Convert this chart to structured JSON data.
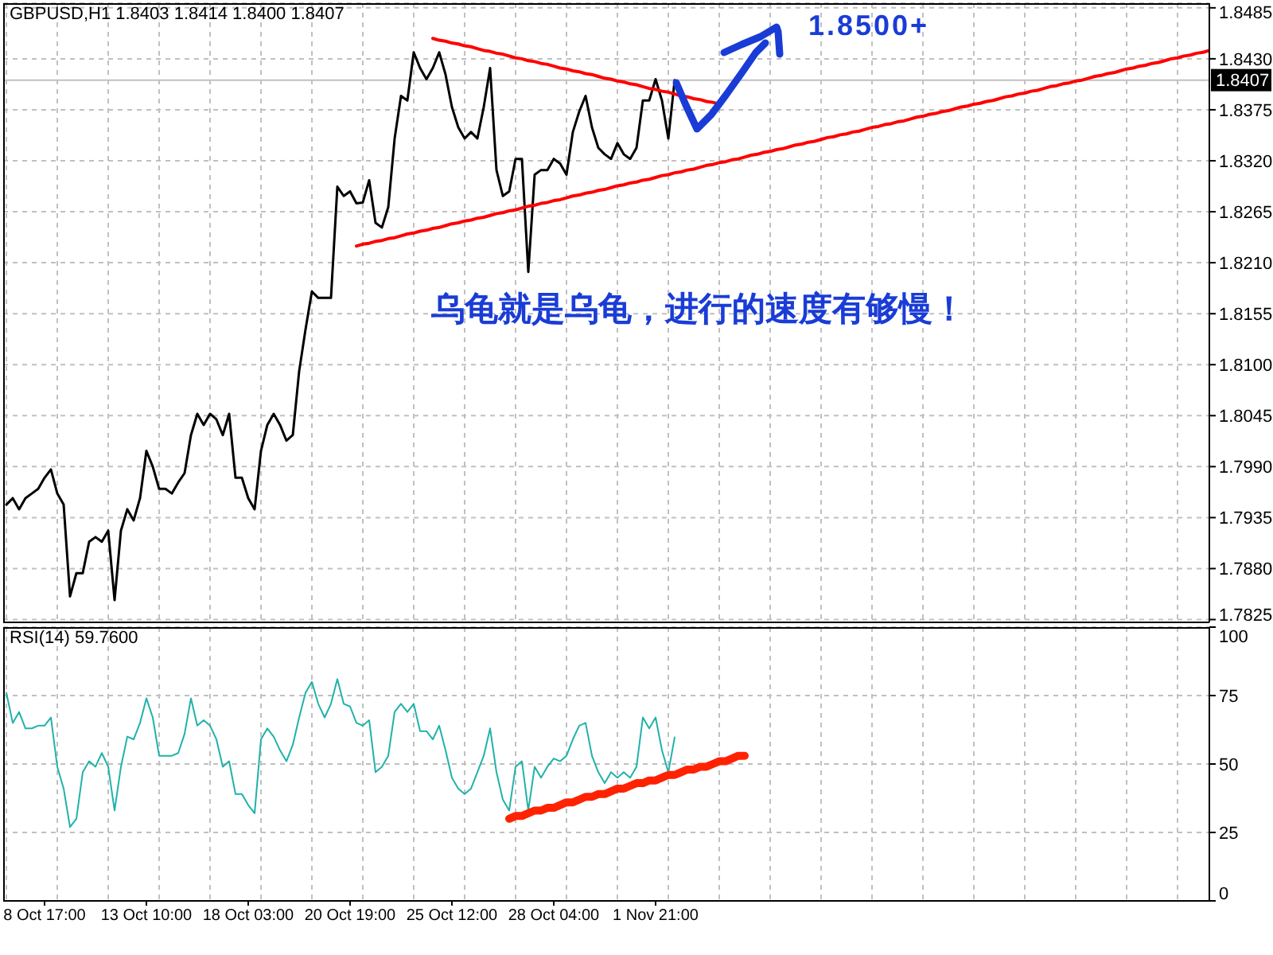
{
  "chart_data": [
    {
      "type": "line",
      "title": "GBPUSD,H1 1.8403 1.8414 1.8400 1.8407",
      "categories": [
        null,
        null,
        null,
        null,
        null,
        null,
        null,
        null,
        null,
        null,
        null,
        null,
        null,
        null,
        null,
        null,
        null,
        null,
        null,
        null,
        null,
        null,
        null,
        null,
        null,
        null,
        null,
        null,
        null,
        null,
        null,
        null,
        null,
        null,
        null,
        null,
        null,
        null,
        null,
        null,
        null,
        null,
        null,
        null,
        null,
        null,
        null,
        null,
        null,
        null,
        null,
        null,
        null,
        null,
        null,
        null,
        null,
        null,
        null,
        null,
        null,
        null,
        null,
        null,
        null,
        null,
        null,
        null,
        null,
        null,
        null,
        null,
        null,
        null,
        null,
        null,
        null,
        null,
        null,
        null,
        null,
        null,
        null,
        null,
        null,
        null,
        null,
        null,
        null,
        null,
        null,
        null,
        null,
        null,
        null,
        null,
        null,
        null,
        null,
        null,
        null,
        null,
        null,
        null,
        null,
        null,
        null,
        null,
        null,
        null,
        null,
        null,
        null,
        null,
        null,
        null,
        null,
        null,
        null,
        null,
        null,
        null,
        null,
        null,
        null,
        null,
        null,
        null,
        null,
        null,
        null,
        null,
        null,
        null,
        null,
        null,
        null,
        null,
        null,
        null,
        null,
        null,
        null,
        null,
        null,
        null,
        null,
        null,
        null,
        null,
        null,
        null,
        null,
        null,
        null,
        null,
        null,
        null,
        null,
        null,
        null,
        null,
        null,
        null,
        null,
        null,
        null,
        null,
        null,
        null,
        null,
        null,
        null,
        null,
        null,
        null,
        null,
        null,
        null,
        null,
        null,
        null,
        null,
        null,
        null,
        null,
        null,
        null,
        null,
        null
      ],
      "series": [
        {
          "color": "#000000",
          "values": [
            1.7949,
            1.7956,
            1.7944,
            1.7956,
            1.7961,
            1.7966,
            1.7978,
            1.7987,
            1.7961,
            1.7949,
            1.785,
            1.7875,
            1.7875,
            1.7909,
            1.7914,
            1.7909,
            1.7921,
            1.7846,
            1.7921,
            1.7944,
            1.7932,
            1.7956,
            1.8007,
            1.799,
            1.7966,
            1.7966,
            1.7961,
            1.7973,
            1.7983,
            1.8024,
            1.8047,
            1.8035,
            1.8047,
            1.8041,
            1.8024,
            1.8047,
            1.7978,
            1.7978,
            1.7956,
            1.7944,
            1.8007,
            1.8035,
            1.8047,
            1.8035,
            1.8018,
            1.8024,
            1.8093,
            1.8138,
            1.8179,
            1.8172,
            1.8172,
            1.8172,
            1.8292,
            1.8282,
            1.8287,
            1.8274,
            1.8275,
            1.8299,
            1.8253,
            1.8248,
            1.827,
            1.8344,
            1.839,
            1.8385,
            1.8437,
            1.842,
            1.8408,
            1.842,
            1.8437,
            1.8413,
            1.8378,
            1.8356,
            1.8344,
            1.8351,
            1.8344,
            1.8378,
            1.842,
            1.831,
            1.8282,
            1.8287,
            1.8322,
            1.8322,
            1.82,
            1.8305,
            1.831,
            1.831,
            1.8322,
            1.8317,
            1.8305,
            1.8351,
            1.8373,
            1.839,
            1.8356,
            1.8334,
            1.8327,
            1.8322,
            1.8339,
            1.8327,
            1.8322,
            1.8334,
            1.8385,
            1.8385,
            1.8408,
            1.8385,
            1.8344,
            1.8407,
            null,
            null,
            null,
            null,
            null,
            null,
            null,
            null,
            null,
            null,
            null,
            null,
            null,
            null,
            null,
            null,
            null,
            null,
            null,
            null,
            null,
            null,
            null,
            null,
            null,
            null,
            null,
            null,
            null,
            null,
            null,
            null,
            null,
            null,
            null,
            null,
            null,
            null,
            null,
            null,
            null,
            null,
            null,
            null,
            null,
            null,
            null,
            null,
            null,
            null,
            null,
            null,
            null,
            null,
            null,
            null,
            null,
            null,
            null,
            null,
            null,
            null,
            null,
            null,
            null,
            null,
            null,
            null,
            null,
            null,
            null,
            null,
            null,
            null,
            null,
            null,
            null,
            null,
            null,
            null,
            null,
            null,
            null,
            null
          ]
        },
        {
          "color": "#ff0000",
          "values": [
            null,
            null,
            null,
            null,
            null,
            null,
            null,
            null,
            null,
            null,
            null,
            null,
            null,
            null,
            null,
            null,
            null,
            null,
            null,
            null,
            null,
            null,
            null,
            null,
            null,
            null,
            null,
            null,
            null,
            null,
            null,
            null,
            null,
            null,
            null,
            null,
            null,
            null,
            null,
            null,
            null,
            null,
            null,
            null,
            null,
            null,
            null,
            null,
            null,
            null,
            null,
            null,
            null,
            null,
            null,
            null,
            null,
            null,
            null,
            null,
            null,
            null,
            null,
            null,
            null,
            null,
            null,
            1.8452,
            1.845,
            1.8449,
            1.8447,
            1.8446,
            1.8444,
            1.8443,
            1.8441,
            1.8439,
            1.8438,
            1.8436,
            1.8435,
            1.8433,
            1.8431,
            1.843,
            1.8428,
            1.8427,
            1.8425,
            1.8424,
            1.8422,
            1.842,
            1.8419,
            1.8417,
            1.8416,
            1.8414,
            1.8413,
            1.8411,
            1.8409,
            1.8408,
            1.8406,
            1.8405,
            1.8403,
            1.8402,
            1.84,
            1.8398,
            1.8397,
            1.8395,
            1.8394,
            1.8392,
            1.839,
            1.8389,
            1.8387,
            1.8386,
            1.8384,
            1.8383,
            1.8381,
            null,
            null,
            null,
            null,
            null,
            null,
            null,
            null,
            null,
            null,
            null,
            null,
            null,
            null,
            null,
            null,
            null,
            null,
            null,
            null,
            null,
            null,
            null,
            null,
            null,
            null,
            null,
            null,
            null,
            null,
            null,
            null,
            null,
            null,
            null,
            null,
            null,
            null,
            null,
            null,
            null,
            null,
            null,
            null,
            null,
            null,
            null,
            null,
            null,
            null,
            null,
            null,
            null,
            null,
            null,
            null,
            null,
            null,
            null,
            null,
            null,
            null,
            null,
            null,
            null,
            null,
            null,
            null,
            null,
            null,
            null,
            null,
            null,
            null,
            null,
            null,
            null
          ]
        },
        {
          "color": "#ff0000",
          "values": [
            null,
            null,
            null,
            null,
            null,
            null,
            null,
            null,
            null,
            null,
            null,
            null,
            null,
            null,
            null,
            null,
            null,
            null,
            null,
            null,
            null,
            null,
            null,
            null,
            null,
            null,
            null,
            null,
            null,
            null,
            null,
            null,
            null,
            null,
            null,
            null,
            null,
            null,
            null,
            null,
            null,
            null,
            null,
            null,
            null,
            null,
            null,
            null,
            null,
            null,
            null,
            null,
            null,
            null,
            null,
            1.8228,
            1.823,
            1.8231,
            1.8233,
            1.8234,
            1.8236,
            1.8237,
            1.8239,
            1.8241,
            1.8242,
            1.8244,
            1.8245,
            1.8247,
            1.8248,
            1.825,
            1.8252,
            1.8253,
            1.8255,
            1.8256,
            1.8258,
            1.8259,
            1.8261,
            1.8263,
            1.8264,
            1.8266,
            1.8267,
            1.8269,
            1.8271,
            1.8272,
            1.8274,
            1.8275,
            1.8277,
            1.8278,
            1.828,
            1.8282,
            1.8283,
            1.8285,
            1.8286,
            1.8288,
            1.8289,
            1.8291,
            1.8293,
            1.8294,
            1.8296,
            1.8297,
            1.8299,
            1.83,
            1.8302,
            1.8304,
            1.8305,
            1.8307,
            1.8308,
            1.831,
            1.8311,
            1.8313,
            1.8315,
            1.8316,
            1.8318,
            1.8319,
            1.8321,
            1.8322,
            1.8324,
            1.8326,
            1.8327,
            1.8329,
            1.833,
            1.8332,
            1.8333,
            1.8335,
            1.8337,
            1.8338,
            1.834,
            1.8341,
            1.8343,
            1.8345,
            1.8346,
            1.8348,
            1.8349,
            1.8351,
            1.8352,
            1.8354,
            1.8356,
            1.8357,
            1.8359,
            1.836,
            1.8362,
            1.8363,
            1.8365,
            1.8367,
            1.8368,
            1.837,
            1.8371,
            1.8373,
            1.8374,
            1.8376,
            1.8378,
            1.8379,
            1.8381,
            1.8382,
            1.8384,
            1.8385,
            1.8387,
            1.8389,
            1.839,
            1.8392,
            1.8393,
            1.8395,
            1.8396,
            1.8398,
            1.84,
            1.8401,
            1.8403,
            1.8404,
            1.8406,
            1.8407,
            1.8409,
            1.8411,
            1.8412,
            1.8414,
            1.8415,
            1.8417,
            1.8419,
            1.842,
            1.8422,
            1.8423,
            1.8425,
            1.8426,
            1.8428,
            1.843,
            1.8431,
            1.8433,
            1.8434,
            1.8436,
            1.8437,
            1.8439
          ]
        }
      ],
      "ylim": [
        1.7822,
        1.849
      ],
      "yticks": [
        1.7825,
        {
          "value": 1.788,
          "label": "1.7880"
        },
        1.7935,
        {
          "value": 1.799,
          "label": "1.7990"
        },
        1.8045,
        {
          "value": 1.81,
          "label": "1.8100"
        },
        1.8155,
        {
          "value": 1.821,
          "label": "1.8210"
        },
        1.8265,
        {
          "value": 1.832,
          "label": "1.8320"
        },
        1.8375,
        {
          "value": 1.843,
          "label": "1.8430"
        },
        1.8485
      ],
      "grid": true,
      "ref_lines": [
        {
          "axis": "y",
          "value": 1.8407,
          "label": "1.8407",
          "color": "#c0c0c0"
        }
      ],
      "annotations": [
        "1.8500+",
        "乌龟就是乌龟，进行的速度有够慢！"
      ]
    },
    {
      "type": "line",
      "title": "RSI(14) 59.7600",
      "categories": [
        null,
        null,
        null,
        null,
        null,
        null,
        "8 Oct 17:00",
        null,
        null,
        null,
        null,
        null,
        null,
        null,
        null,
        null,
        null,
        null,
        null,
        null,
        null,
        null,
        "13 Oct 10:00",
        null,
        null,
        null,
        null,
        null,
        null,
        null,
        null,
        null,
        null,
        null,
        null,
        null,
        null,
        null,
        "18 Oct 03:00",
        null,
        null,
        null,
        null,
        null,
        null,
        null,
        null,
        null,
        null,
        null,
        null,
        null,
        null,
        null,
        "20 Oct 19:00",
        null,
        null,
        null,
        null,
        null,
        null,
        null,
        null,
        null,
        null,
        null,
        null,
        null,
        null,
        null,
        "25 Oct 12:00",
        null,
        null,
        null,
        null,
        null,
        null,
        null,
        null,
        null,
        null,
        null,
        null,
        null,
        null,
        null,
        "28 Oct 04:00",
        null,
        null,
        null,
        null,
        null,
        null,
        null,
        null,
        null,
        null,
        null,
        null,
        null,
        null,
        null,
        "1 Nov 21:00",
        null,
        null,
        null,
        null,
        null,
        null,
        null,
        null,
        null,
        null,
        null,
        null,
        null,
        null,
        null,
        null,
        null,
        null,
        null,
        null,
        null,
        null,
        null,
        null,
        null,
        null,
        null,
        null,
        null,
        null,
        null,
        null,
        null,
        null,
        null,
        null,
        null,
        null,
        null,
        null,
        null,
        null,
        null,
        null,
        null,
        null,
        null,
        null,
        null,
        null,
        null,
        null,
        null,
        null,
        null,
        null,
        null,
        null,
        null,
        null,
        null,
        null,
        null,
        null,
        null,
        null,
        null,
        null,
        null,
        null,
        null,
        null,
        null,
        null,
        null,
        null,
        null,
        null,
        null,
        null,
        null,
        null,
        null,
        null,
        null,
        null,
        null
      ],
      "series": [
        {
          "color": "#20b2aa",
          "values": [
            76,
            65,
            69,
            63,
            63,
            64,
            64,
            67,
            49,
            41,
            27,
            30,
            47,
            51,
            49,
            54,
            49,
            33,
            49,
            60,
            59,
            65,
            74,
            67,
            53,
            53,
            53,
            54,
            61,
            74,
            64,
            66,
            64,
            59,
            49,
            51,
            39,
            39,
            35,
            32,
            59,
            63,
            60,
            55,
            51,
            57,
            67,
            76,
            80,
            72,
            67,
            72,
            81,
            72,
            71,
            65,
            64,
            66,
            47,
            49,
            53,
            69,
            72,
            69,
            72,
            62,
            62,
            59,
            64,
            55,
            45,
            41,
            39,
            41,
            47,
            53,
            63,
            47,
            37,
            33,
            49,
            51,
            33,
            49,
            45,
            49,
            52,
            51,
            53,
            59,
            64,
            65,
            53,
            47,
            43,
            47,
            45,
            47,
            45,
            49,
            67,
            63,
            67,
            55,
            47,
            59.76,
            null,
            null,
            null,
            null,
            null,
            null,
            null,
            null,
            null,
            null,
            null,
            null,
            null,
            null,
            null,
            null,
            null,
            null,
            null,
            null,
            null,
            null,
            null,
            null,
            null,
            null,
            null,
            null,
            null,
            null,
            null,
            null,
            null,
            null,
            null,
            null,
            null,
            null,
            null,
            null,
            null,
            null,
            null,
            null,
            null,
            null,
            null,
            null,
            null,
            null,
            null,
            null,
            null,
            null,
            null,
            null,
            null,
            null,
            null,
            null,
            null,
            null,
            null,
            null,
            null,
            null,
            null,
            null,
            null,
            null,
            null,
            null,
            null,
            null,
            null,
            null,
            null,
            null,
            null,
            null,
            null,
            null,
            null,
            null
          ]
        },
        {
          "color": "#ff2200",
          "values": [
            null,
            null,
            null,
            null,
            null,
            null,
            null,
            null,
            null,
            null,
            null,
            null,
            null,
            null,
            null,
            null,
            null,
            null,
            null,
            null,
            null,
            null,
            null,
            null,
            null,
            null,
            null,
            null,
            null,
            null,
            null,
            null,
            null,
            null,
            null,
            null,
            null,
            null,
            null,
            null,
            null,
            null,
            null,
            null,
            null,
            null,
            null,
            null,
            null,
            null,
            null,
            null,
            null,
            null,
            null,
            null,
            null,
            null,
            null,
            null,
            null,
            null,
            null,
            null,
            null,
            null,
            null,
            null,
            null,
            null,
            null,
            null,
            null,
            null,
            null,
            null,
            null,
            null,
            null,
            30,
            31,
            31,
            32,
            33,
            33,
            34,
            34,
            35,
            36,
            36,
            37,
            38,
            38,
            39,
            39,
            40,
            41,
            41,
            42,
            43,
            43,
            44,
            44,
            45,
            46,
            46,
            47,
            48,
            48,
            49,
            49,
            50,
            51,
            51,
            52,
            53,
            53,
            null,
            null,
            null,
            null,
            null,
            null,
            null,
            null,
            null,
            null,
            null,
            null,
            null,
            null,
            null,
            null,
            null,
            null,
            null,
            null,
            null,
            null,
            null,
            null,
            null,
            null,
            null,
            null,
            null,
            null,
            null,
            null,
            null,
            null,
            null,
            null,
            null,
            null,
            null,
            null,
            null,
            null,
            null,
            null,
            null,
            null,
            null,
            null,
            null,
            null,
            null,
            null,
            null,
            null,
            null,
            null,
            null,
            null,
            null,
            null,
            null,
            null,
            null,
            null,
            null,
            null,
            null,
            null,
            null,
            null,
            null,
            null,
            null
          ]
        }
      ],
      "ylim": [
        0,
        100
      ],
      "yticks": [
        0,
        25,
        50,
        75,
        100
      ],
      "grid": true
    }
  ]
}
